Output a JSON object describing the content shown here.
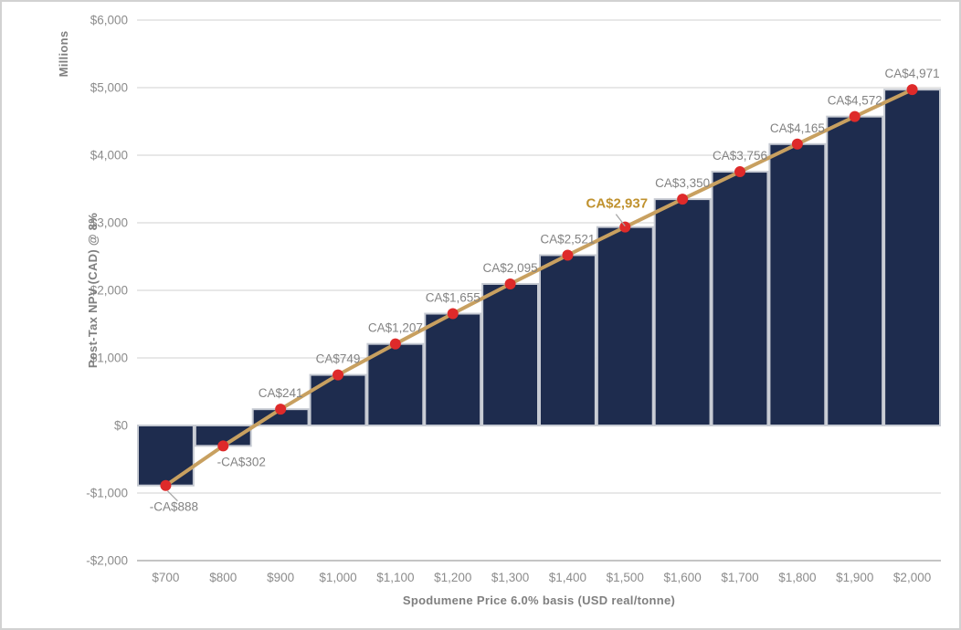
{
  "chart_data": {
    "type": "bar",
    "subtype": "column-with-line-overlay",
    "title": "",
    "x_axis": {
      "label": "Spodumene Price 6.0% basis (USD real/tonne)"
    },
    "y_axis": {
      "label": "Post-Tax NPV (CAD) @ 8%",
      "units_label": "Millions",
      "range": [
        -2000,
        6000
      ],
      "step": 1000,
      "gridlines": true,
      "ticks": [
        {
          "value": 6000,
          "label": "$6,000"
        },
        {
          "value": 5000,
          "label": "$5,000"
        },
        {
          "value": 4000,
          "label": "$4,000"
        },
        {
          "value": 3000,
          "label": "$3,000"
        },
        {
          "value": 2000,
          "label": "$2,000"
        },
        {
          "value": 1000,
          "label": "$1,000"
        },
        {
          "value": 0,
          "label": "$0"
        },
        {
          "value": -1000,
          "label": "-$1,000"
        },
        {
          "value": -2000,
          "label": "-$2,000"
        }
      ]
    },
    "series": [
      {
        "name": "Post-Tax NPV columns",
        "type": "bar",
        "color": "#1e2c4e"
      },
      {
        "name": "Post-Tax NPV line",
        "type": "line",
        "color": "#c8a060",
        "marker": "circle",
        "marker_color": "#de2a2a"
      }
    ],
    "points": [
      {
        "price": "$700",
        "value": -888,
        "label": "-CA$888"
      },
      {
        "price": "$800",
        "value": -302,
        "label": "-CA$302"
      },
      {
        "price": "$900",
        "value": 241,
        "label": "CA$241"
      },
      {
        "price": "$1,000",
        "value": 749,
        "label": "CA$749"
      },
      {
        "price": "$1,100",
        "value": 1207,
        "label": "CA$1,207"
      },
      {
        "price": "$1,200",
        "value": 1655,
        "label": "CA$1,655"
      },
      {
        "price": "$1,300",
        "value": 2095,
        "label": "CA$2,095"
      },
      {
        "price": "$1,400",
        "value": 2521,
        "label": "CA$2,521"
      },
      {
        "price": "$1,500",
        "value": 2937,
        "label": "CA$2,937",
        "emphasis": true
      },
      {
        "price": "$1,600",
        "value": 3350,
        "label": "CA$3,350"
      },
      {
        "price": "$1,700",
        "value": 3756,
        "label": "CA$3,756"
      },
      {
        "price": "$1,800",
        "value": 4165,
        "label": "CA$4,165"
      },
      {
        "price": "$1,900",
        "value": 4572,
        "label": "CA$4,572"
      },
      {
        "price": "$2,000",
        "value": 4971,
        "label": "CA$4,971"
      }
    ],
    "colors": {
      "bar": "#1e2c4e",
      "bar_border": "#c6cad2",
      "line": "#c8a060",
      "marker": "#de2a2a",
      "grid": "#d9d9d9",
      "axis_line": "#c4c4c4",
      "tick_text": "#8c8c8c",
      "axis_title_text": "#7f7f7f",
      "data_label_text": "#838383",
      "emphasis_label_text": "#c0922f",
      "leader_line": "#a6a6a6",
      "frame_border": "#d2d2d2",
      "background": "#ffffff"
    }
  }
}
